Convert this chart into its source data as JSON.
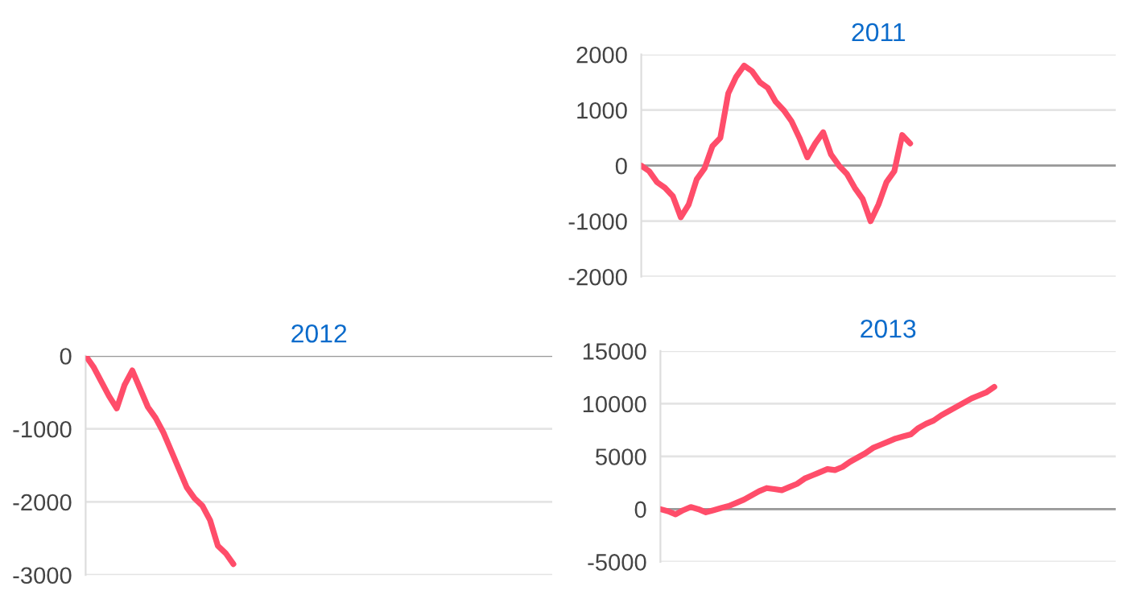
{
  "chart_data": [
    {
      "type": "line",
      "title": "2011",
      "categories": [
        null,
        null,
        null,
        null,
        null,
        null,
        null,
        null,
        null,
        null,
        null,
        null,
        null,
        null,
        null,
        null,
        null,
        null,
        null,
        null,
        null,
        null,
        null,
        null,
        null,
        null,
        null,
        null,
        null,
        null,
        null,
        null,
        null,
        null,
        null,
        null,
        null,
        null,
        null,
        null,
        null,
        null,
        null,
        null,
        null,
        null,
        null,
        null,
        null,
        null,
        null,
        null,
        null,
        null,
        null,
        null,
        null,
        null,
        null,
        null,
        null
      ],
      "series": [
        {
          "color": "#ff4d6a",
          "values": [
            0,
            -100,
            -300,
            -400,
            -550,
            -930,
            -700,
            -250,
            -50,
            350,
            500,
            1300,
            1600,
            1800,
            1700,
            1500,
            1400,
            1150,
            1000,
            800,
            500,
            150,
            400,
            600,
            200,
            0,
            -150,
            -400,
            -600,
            -1000,
            -700,
            -300,
            -100,
            550,
            400,
            null,
            null,
            null,
            null,
            null,
            null,
            null,
            null,
            null,
            null,
            null,
            null,
            null,
            null,
            null,
            null,
            null,
            null,
            null,
            null,
            null,
            null,
            null,
            null,
            null,
            null
          ]
        }
      ],
      "ylim": [
        -2000,
        2000
      ],
      "yticks": [
        -2000,
        -1000,
        0,
        1000,
        2000
      ],
      "grid": "y",
      "tick_labels": "y",
      "marker": "none",
      "line_style": "solid",
      "ref_lines": [
        {
          "axis": "y",
          "value": 0,
          "color": "#999999"
        }
      ]
    },
    {
      "type": "line",
      "title": "2012",
      "categories": [
        null,
        null,
        null,
        null,
        null,
        null,
        null,
        null,
        null,
        null,
        null,
        null,
        null,
        null,
        null,
        null,
        null,
        null,
        null,
        null,
        null,
        null,
        null,
        null,
        null,
        null,
        null,
        null,
        null,
        null,
        null,
        null,
        null,
        null,
        null,
        null,
        null,
        null,
        null,
        null,
        null,
        null,
        null,
        null,
        null,
        null,
        null,
        null,
        null,
        null,
        null,
        null,
        null,
        null,
        null,
        null,
        null,
        null,
        null,
        null,
        null
      ],
      "series": [
        {
          "color": "#ff4d6a",
          "values": [
            0,
            -150,
            -350,
            -550,
            -720,
            -400,
            -200,
            -450,
            -700,
            -850,
            -1050,
            -1300,
            -1550,
            -1800,
            -1950,
            -2050,
            -2250,
            -2600,
            -2700,
            -2850,
            null,
            null,
            null,
            null,
            null,
            null,
            null,
            null,
            null,
            null,
            null,
            null,
            null,
            null,
            null,
            null,
            null,
            null,
            null,
            null,
            null,
            null,
            null,
            null,
            null,
            null,
            null,
            null,
            null,
            null,
            null,
            null,
            null,
            null,
            null,
            null,
            null,
            null,
            null,
            null,
            null
          ]
        }
      ],
      "ylim": [
        -3000,
        0
      ],
      "yticks": [
        -3000,
        -2000,
        -1000,
        0
      ],
      "grid": "y",
      "tick_labels": "y",
      "marker": "none",
      "line_style": "solid",
      "ref_lines": [
        {
          "axis": "y",
          "value": 0,
          "color": "#999999"
        }
      ]
    },
    {
      "type": "line",
      "title": "2013",
      "categories": [
        null,
        null,
        null,
        null,
        null,
        null,
        null,
        null,
        null,
        null,
        null,
        null,
        null,
        null,
        null,
        null,
        null,
        null,
        null,
        null,
        null,
        null,
        null,
        null,
        null,
        null,
        null,
        null,
        null,
        null,
        null,
        null,
        null,
        null,
        null,
        null,
        null,
        null,
        null,
        null,
        null,
        null,
        null,
        null,
        null,
        null,
        null,
        null,
        null,
        null,
        null,
        null,
        null,
        null,
        null,
        null,
        null,
        null,
        null,
        null,
        null
      ],
      "series": [
        {
          "color": "#ff4d6a",
          "values": [
            0,
            -200,
            -500,
            -100,
            200,
            0,
            -300,
            -100,
            100,
            300,
            600,
            900,
            1300,
            1700,
            2000,
            1900,
            1800,
            2100,
            2400,
            2900,
            3200,
            3500,
            3800,
            3700,
            4000,
            4500,
            4900,
            5300,
            5800,
            6100,
            6400,
            6700,
            6900,
            7100,
            7700,
            8100,
            8400,
            8900,
            9300,
            9700,
            10100,
            10500,
            10800,
            11100,
            11600,
            null,
            null,
            null,
            null,
            null,
            null,
            null,
            null,
            null,
            null,
            null,
            null,
            null,
            null,
            null,
            null
          ]
        }
      ],
      "ylim": [
        -5000,
        15000
      ],
      "yticks": [
        -5000,
        0,
        5000,
        10000,
        15000
      ],
      "grid": "y",
      "tick_labels": "y",
      "marker": "none",
      "line_style": "solid",
      "ref_lines": [
        {
          "axis": "y",
          "value": 0,
          "color": "#999999"
        }
      ]
    }
  ]
}
